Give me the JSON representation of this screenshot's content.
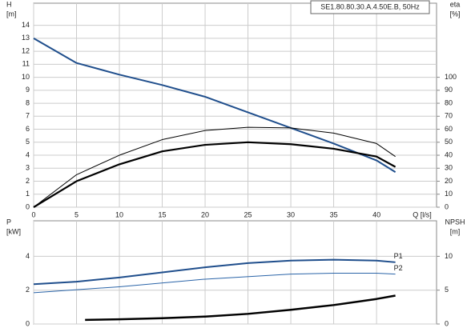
{
  "chart_data": [
    {
      "type": "line",
      "title": "SE1.80.80.30.A.4.50E.B, 50Hz",
      "ylabel": "H",
      "ylabel_unit": "[m]",
      "y2label": "eta",
      "y2label_unit": "[%]",
      "xlabel": "Q [l/s]",
      "xlim": [
        0,
        47
      ],
      "xticks": [
        0,
        5,
        10,
        15,
        20,
        25,
        30,
        35,
        40
      ],
      "ylim": [
        0,
        15.7
      ],
      "yticks": [
        0,
        1,
        2,
        3,
        4,
        5,
        6,
        7,
        8,
        9,
        10,
        11,
        12,
        13,
        14
      ],
      "y2lim": [
        0,
        157
      ],
      "y2ticks": [
        0,
        10,
        20,
        30,
        40,
        50,
        60,
        70,
        80,
        90,
        100
      ],
      "grid": true,
      "series": [
        {
          "color": "#1f4e8c",
          "width": 2,
          "x": [
            0,
            5,
            10,
            15,
            20,
            25,
            30,
            35,
            40,
            42.2
          ],
          "values": [
            13,
            11.1,
            10.2,
            9.4,
            8.5,
            7.3,
            6.1,
            4.9,
            3.6,
            2.7
          ]
        },
        {
          "color": "#000000",
          "width": 1,
          "axis": "y2",
          "x": [
            0,
            5,
            10,
            15,
            20,
            25,
            30,
            35,
            40,
            42.2
          ],
          "values": [
            0,
            25,
            40,
            52,
            59,
            61.5,
            61,
            57,
            49,
            39
          ]
        },
        {
          "color": "#000000",
          "width": 2.2,
          "axis": "y2",
          "x": [
            0,
            5,
            10,
            15,
            20,
            25,
            30,
            35,
            40,
            42.2
          ],
          "values": [
            0,
            20,
            33,
            43,
            48,
            50,
            48.5,
            45,
            39,
            31
          ]
        }
      ]
    },
    {
      "type": "line",
      "ylabel": "P",
      "ylabel_unit": "[kW]",
      "y2label": "NPSH",
      "y2label_unit": "[m]",
      "xlim": [
        0,
        47
      ],
      "xticks": [
        0,
        5,
        10,
        15,
        20,
        25,
        30,
        35,
        40
      ],
      "xtick_labels": false,
      "ylim": [
        0,
        6.1
      ],
      "yticks": [
        0,
        2,
        4
      ],
      "y2lim": [
        0,
        15.25
      ],
      "y2ticks": [
        0,
        5,
        10
      ],
      "grid": true,
      "series": [
        {
          "name": "P1",
          "color": "#1f4e8c",
          "width": 2,
          "x": [
            0,
            5,
            10,
            15,
            20,
            25,
            30,
            35,
            40,
            42.2
          ],
          "values": [
            2.35,
            2.5,
            2.75,
            3.05,
            3.35,
            3.6,
            3.75,
            3.8,
            3.75,
            3.65
          ]
        },
        {
          "name": "P2",
          "color": "#2a64a8",
          "width": 1,
          "x": [
            0,
            10,
            20,
            30,
            35,
            40,
            42.2
          ],
          "values": [
            1.85,
            2.2,
            2.65,
            2.95,
            3.0,
            3.0,
            2.95
          ]
        },
        {
          "color": "#000000",
          "width": 2.5,
          "axis": "y2",
          "x": [
            6,
            10,
            15,
            20,
            25,
            30,
            35,
            40,
            42.2
          ],
          "values": [
            0.6,
            0.7,
            0.85,
            1.1,
            1.5,
            2.1,
            2.8,
            3.7,
            4.2
          ]
        }
      ]
    }
  ]
}
